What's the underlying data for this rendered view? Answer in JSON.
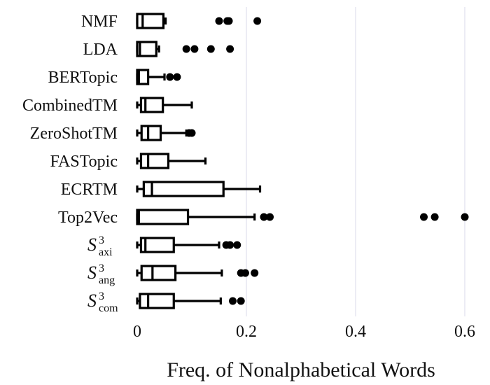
{
  "chart_data": {
    "type": "box",
    "orientation": "horizontal",
    "title": "",
    "xlabel": "Freq. of Nonalphabetical Words",
    "ylabel": "",
    "xlim": [
      0,
      0.6
    ],
    "xticks": [
      0,
      0.2,
      0.4,
      0.6
    ],
    "xtick_labels": [
      "0",
      "0.2",
      "0.4",
      "0.6"
    ],
    "grid": "vertical",
    "categories": [
      {
        "label": "NMF",
        "sup": "",
        "sub": ""
      },
      {
        "label": "LDA",
        "sup": "",
        "sub": ""
      },
      {
        "label": "BERTopic",
        "sup": "",
        "sub": ""
      },
      {
        "label": "CombinedTM",
        "sup": "",
        "sub": ""
      },
      {
        "label": "ZeroShotTM",
        "sup": "",
        "sub": ""
      },
      {
        "label": "FASTopic",
        "sup": "",
        "sub": ""
      },
      {
        "label": "ECRTM",
        "sup": "",
        "sub": ""
      },
      {
        "label": "Top2Vec",
        "sup": "",
        "sub": ""
      },
      {
        "label": "S",
        "sup": "3",
        "sub": "axi"
      },
      {
        "label": "S",
        "sup": "3",
        "sub": "ang"
      },
      {
        "label": "S",
        "sup": "3",
        "sub": "com"
      }
    ],
    "boxes": [
      {
        "whisker_low": 0.0,
        "q1": 0.0,
        "median": 0.01,
        "q3": 0.048,
        "whisker_high": 0.052,
        "outliers": [
          0.15,
          0.165,
          0.168,
          0.22
        ]
      },
      {
        "whisker_low": 0.0,
        "q1": 0.0,
        "median": 0.005,
        "q3": 0.035,
        "whisker_high": 0.04,
        "outliers": [
          0.09,
          0.105,
          0.135,
          0.17
        ]
      },
      {
        "whisker_low": 0.0,
        "q1": 0.0,
        "median": 0.003,
        "q3": 0.02,
        "whisker_high": 0.05,
        "outliers": [
          0.06,
          0.073
        ]
      },
      {
        "whisker_low": 0.0,
        "q1": 0.007,
        "median": 0.015,
        "q3": 0.047,
        "whisker_high": 0.1,
        "outliers": []
      },
      {
        "whisker_low": 0.0,
        "q1": 0.008,
        "median": 0.02,
        "q3": 0.043,
        "whisker_high": 0.09,
        "outliers": [
          0.095,
          0.1
        ]
      },
      {
        "whisker_low": 0.0,
        "q1": 0.007,
        "median": 0.02,
        "q3": 0.057,
        "whisker_high": 0.125,
        "outliers": []
      },
      {
        "whisker_low": 0.0,
        "q1": 0.012,
        "median": 0.027,
        "q3": 0.158,
        "whisker_high": 0.225,
        "outliers": []
      },
      {
        "whisker_low": 0.0,
        "q1": 0.0,
        "median": 0.003,
        "q3": 0.093,
        "whisker_high": 0.215,
        "outliers": [
          0.232,
          0.243,
          0.525,
          0.545,
          0.6
        ]
      },
      {
        "whisker_low": 0.0,
        "q1": 0.007,
        "median": 0.015,
        "q3": 0.067,
        "whisker_high": 0.15,
        "outliers": [
          0.163,
          0.17,
          0.183
        ]
      },
      {
        "whisker_low": 0.0,
        "q1": 0.008,
        "median": 0.028,
        "q3": 0.07,
        "whisker_high": 0.155,
        "outliers": [
          0.19,
          0.198,
          0.215
        ]
      },
      {
        "whisker_low": 0.0,
        "q1": 0.005,
        "median": 0.02,
        "q3": 0.067,
        "whisker_high": 0.153,
        "outliers": [
          0.175,
          0.19
        ]
      }
    ]
  }
}
